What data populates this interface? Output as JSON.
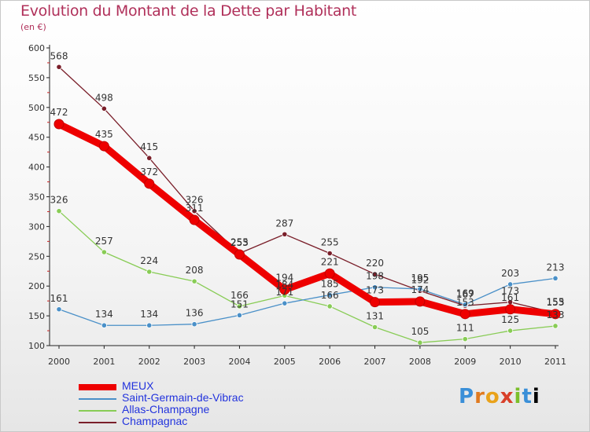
{
  "title": "Evolution du Montant de la Dette par Habitant",
  "subtitle": "(en €)",
  "logo_text": "Proxiti",
  "chart_data": {
    "type": "line",
    "x": [
      "2000",
      "2001",
      "2002",
      "2003",
      "2004",
      "2005",
      "2006",
      "2007",
      "2008",
      "2009",
      "2010",
      "2011"
    ],
    "ylim": [
      100,
      600
    ],
    "yticks": [
      100,
      150,
      200,
      250,
      300,
      350,
      400,
      450,
      500,
      550,
      600
    ],
    "grid": false,
    "legend_position": "bottom-left",
    "series": [
      {
        "name": "MEUX",
        "color": "#ee0000",
        "emphasis": true,
        "values": [
          472,
          435,
          372,
          311,
          253,
          194,
          221,
          173,
          174,
          153,
          161,
          153
        ]
      },
      {
        "name": "Saint-Germain-de-Vibrac",
        "color": "#4a90c8",
        "values": [
          161,
          134,
          134,
          136,
          151,
          171,
          185,
          198,
          195,
          169,
          203,
          213
        ]
      },
      {
        "name": "Allas-Champagne",
        "color": "#88cc55",
        "values": [
          326,
          257,
          224,
          208,
          166,
          184,
          166,
          131,
          105,
          111,
          125,
          133
        ]
      },
      {
        "name": "Champagnac",
        "color": "#7a1f2a",
        "values": [
          568,
          498,
          415,
          326,
          255,
          287,
          255,
          220,
          192,
          167,
          173,
          155
        ]
      }
    ]
  }
}
